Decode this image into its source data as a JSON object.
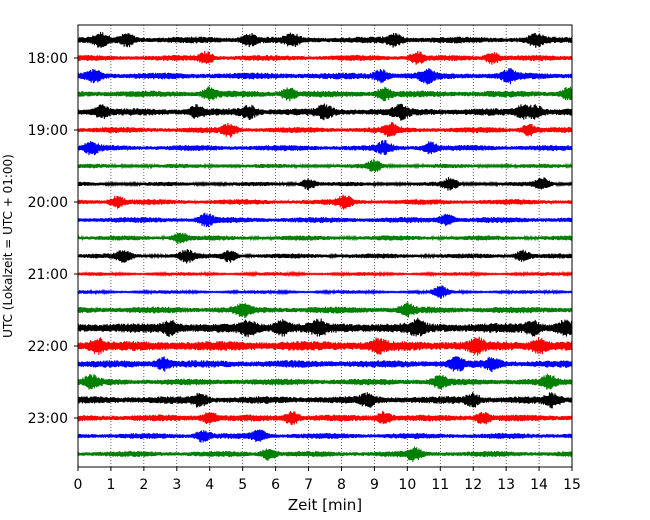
{
  "chart_data": {
    "type": "line",
    "subtype": "seismogram-helicorder",
    "xlabel": "Zeit  [min]",
    "ylabel": "UTC (Lokalzeit = UTC + 01:00)",
    "xlim": [
      0,
      15
    ],
    "x_ticks": [
      "0",
      "1",
      "2",
      "3",
      "4",
      "5",
      "6",
      "7",
      "8",
      "9",
      "10",
      "11",
      "12",
      "13",
      "14",
      "15"
    ],
    "y_tick_labels": [
      "18:00",
      "19:00",
      "20:00",
      "21:00",
      "22:00",
      "23:00"
    ],
    "grid": "vertical dotted at each minute",
    "trace_interval_minutes": 15,
    "trace_colors": [
      "#000000",
      "#ff0000",
      "#0000ff",
      "#008000"
    ],
    "traces": [
      {
        "start": "17:45",
        "color": "#000000",
        "amplitude": 0.35,
        "bursts": [
          0.7,
          1.5,
          5.2,
          6.5,
          9.6,
          13.9
        ]
      },
      {
        "start": "18:00",
        "color": "#ff0000",
        "amplitude": 0.3,
        "bursts": [
          3.9,
          10.3,
          12.6
        ]
      },
      {
        "start": "18:15",
        "color": "#0000ff",
        "amplitude": 0.35,
        "bursts": [
          0.5,
          9.2,
          10.6,
          13.1
        ]
      },
      {
        "start": "18:30",
        "color": "#008000",
        "amplitude": 0.35,
        "bursts": [
          4.0,
          6.4,
          9.3,
          14.9
        ]
      },
      {
        "start": "18:45",
        "color": "#000000",
        "amplitude": 0.4,
        "bursts": [
          0.7,
          3.6,
          5.2,
          7.5,
          9.8,
          13.5,
          13.9
        ]
      },
      {
        "start": "19:00",
        "color": "#ff0000",
        "amplitude": 0.3,
        "bursts": [
          4.6,
          9.5,
          13.7
        ]
      },
      {
        "start": "19:15",
        "color": "#0000ff",
        "amplitude": 0.3,
        "bursts": [
          0.4,
          9.3,
          10.7
        ]
      },
      {
        "start": "19:30",
        "color": "#008000",
        "amplitude": 0.2,
        "bursts": [
          9.0
        ]
      },
      {
        "start": "19:45",
        "color": "#000000",
        "amplitude": 0.2,
        "bursts": [
          7.0,
          11.3,
          14.1
        ]
      },
      {
        "start": "20:00",
        "color": "#ff0000",
        "amplitude": 0.28,
        "bursts": [
          1.2,
          8.1
        ]
      },
      {
        "start": "20:15",
        "color": "#0000ff",
        "amplitude": 0.3,
        "bursts": [
          3.9,
          11.2
        ]
      },
      {
        "start": "20:30",
        "color": "#008000",
        "amplitude": 0.25,
        "bursts": [
          3.1
        ]
      },
      {
        "start": "20:45",
        "color": "#000000",
        "amplitude": 0.25,
        "bursts": [
          1.4,
          3.3,
          4.6,
          13.5
        ]
      },
      {
        "start": "21:00",
        "color": "#ff0000",
        "amplitude": 0.15,
        "bursts": []
      },
      {
        "start": "21:15",
        "color": "#0000ff",
        "amplitude": 0.15,
        "bursts": [
          11.0
        ]
      },
      {
        "start": "21:30",
        "color": "#008000",
        "amplitude": 0.35,
        "bursts": [
          5.0,
          10.0
        ]
      },
      {
        "start": "21:45",
        "color": "#000000",
        "amplitude": 0.55,
        "bursts": [
          2.8,
          5.2,
          6.2,
          7.3,
          10.3,
          13.8,
          14.8
        ]
      },
      {
        "start": "22:00",
        "color": "#ff0000",
        "amplitude": 0.55,
        "bursts": [
          0.6,
          9.1,
          12.1,
          14.0
        ]
      },
      {
        "start": "22:15",
        "color": "#0000ff",
        "amplitude": 0.4,
        "bursts": [
          2.6,
          11.5,
          12.6
        ]
      },
      {
        "start": "22:30",
        "color": "#008000",
        "amplitude": 0.35,
        "bursts": [
          0.4,
          11.0,
          14.3
        ]
      },
      {
        "start": "22:45",
        "color": "#000000",
        "amplitude": 0.4,
        "bursts": [
          3.7,
          8.8,
          12.0,
          14.4
        ]
      },
      {
        "start": "23:00",
        "color": "#ff0000",
        "amplitude": 0.35,
        "bursts": [
          4.0,
          6.5,
          9.3,
          12.3
        ]
      },
      {
        "start": "23:15",
        "color": "#0000ff",
        "amplitude": 0.3,
        "bursts": [
          3.8,
          5.5
        ]
      },
      {
        "start": "23:30",
        "color": "#008000",
        "amplitude": 0.3,
        "bursts": [
          5.8,
          10.2
        ]
      }
    ]
  }
}
